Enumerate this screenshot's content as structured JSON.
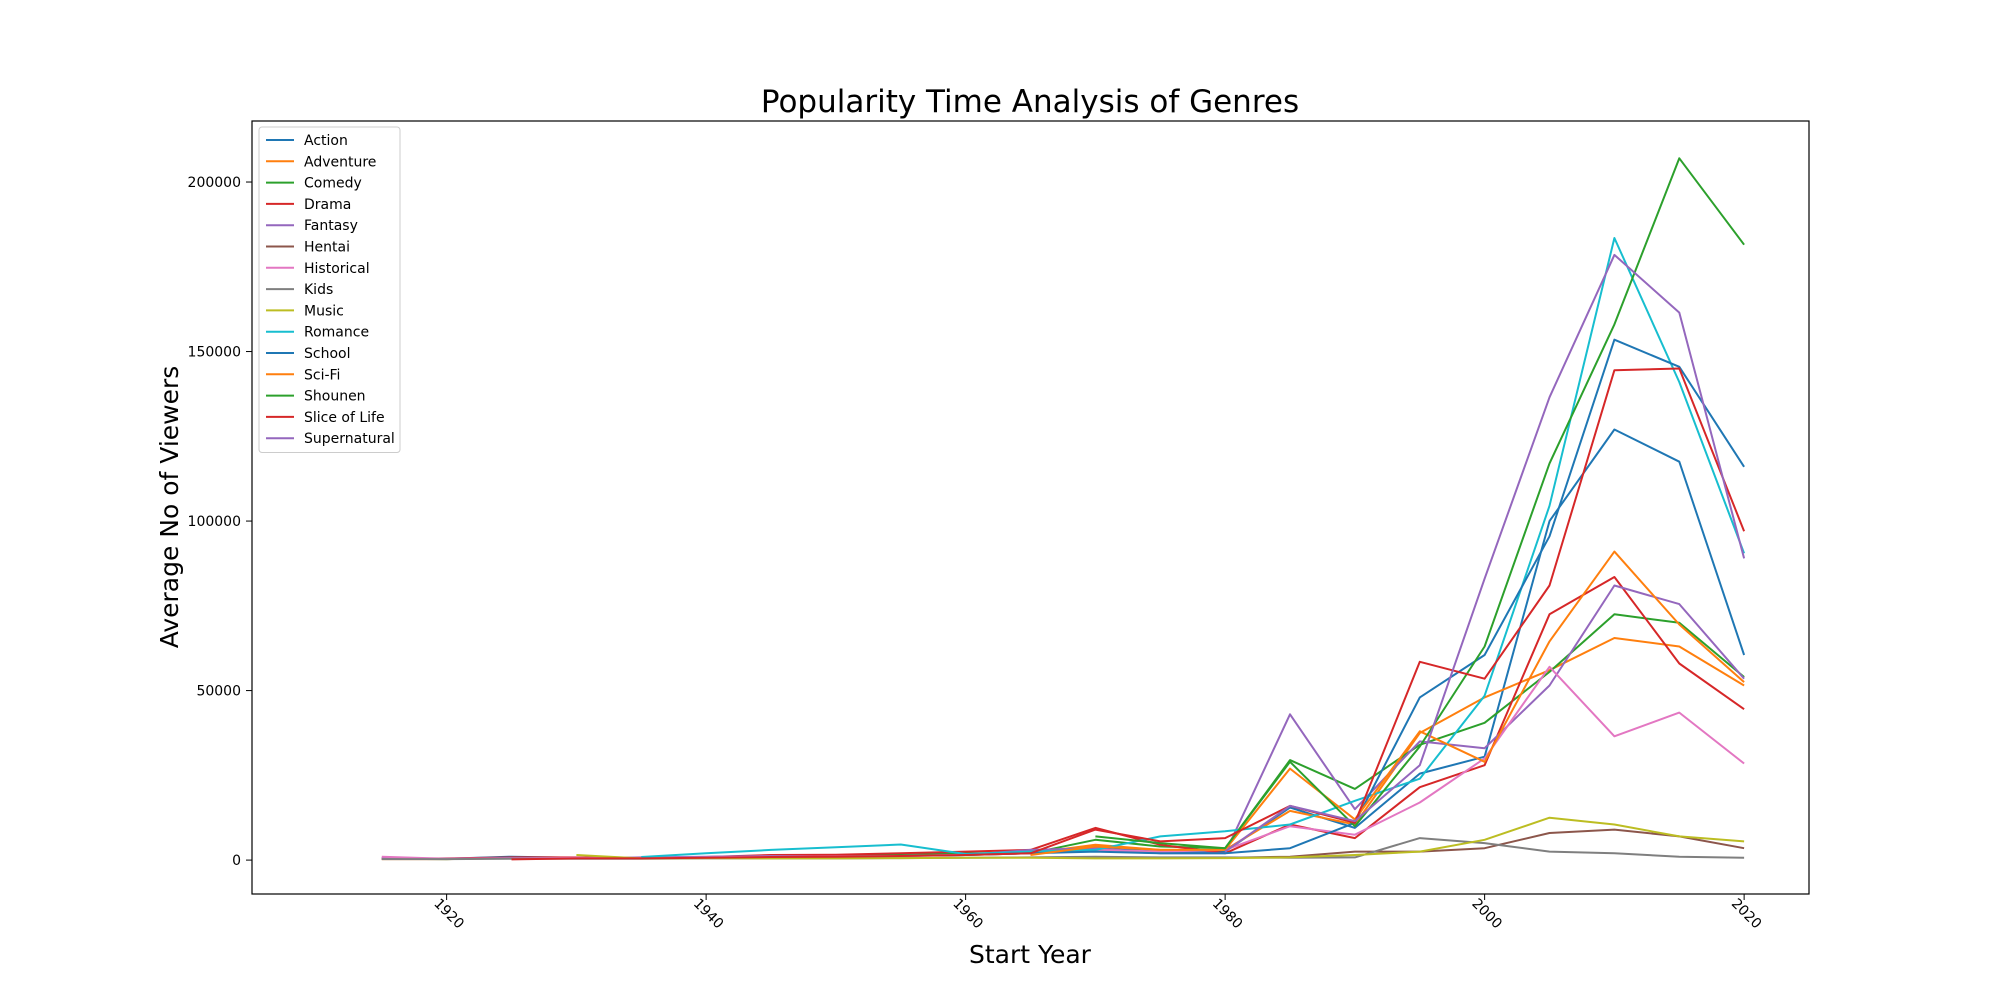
{
  "chart_data": {
    "type": "line",
    "title": "Popularity Time Analysis of Genres",
    "xlabel": "Start Year",
    "ylabel": "Average No of Viewers",
    "xlim": [
      1905,
      2025
    ],
    "ylim": [
      -10000,
      218000
    ],
    "xticks": [
      1920,
      1940,
      1960,
      1980,
      2000,
      2020
    ],
    "yticks": [
      0,
      50000,
      100000,
      150000,
      200000
    ],
    "grid": false,
    "legend_position": "upper-left",
    "x": [
      1915,
      1920,
      1925,
      1930,
      1935,
      1940,
      1945,
      1950,
      1955,
      1960,
      1965,
      1970,
      1975,
      1980,
      1985,
      1990,
      1995,
      2000,
      2005,
      2010,
      2015,
      2020
    ],
    "series": [
      {
        "name": "Action",
        "color": "#1f77b4",
        "values": [
          500,
          400,
          1000,
          700,
          600,
          800,
          1200,
          900,
          1300,
          1500,
          2500,
          3500,
          2500,
          2500,
          15500,
          9500,
          25500,
          30500,
          100000,
          127000,
          117500,
          60500
        ]
      },
      {
        "name": "Adventure",
        "color": "#ff7f0e",
        "values": [
          300,
          300,
          600,
          700,
          500,
          900,
          1000,
          1200,
          1400,
          1500,
          2000,
          4500,
          3000,
          3000,
          14500,
          10500,
          37500,
          48000,
          56000,
          65500,
          63000,
          51500
        ]
      },
      {
        "name": "Comedy",
        "color": "#2ca02c",
        "values": [
          400,
          300,
          700,
          700,
          500,
          700,
          1000,
          1200,
          1500,
          2000,
          2000,
          6000,
          4000,
          3500,
          29500,
          21000,
          34000,
          40500,
          55500,
          72500,
          70000,
          54000
        ]
      },
      {
        "name": "Drama",
        "color": "#d62728",
        "values": [
          400,
          500,
          800,
          800,
          600,
          900,
          1500,
          1600,
          2000,
          2500,
          3000,
          9500,
          4500,
          2000,
          10500,
          6500,
          21500,
          28000,
          72500,
          83500,
          58000,
          44500
        ]
      },
      {
        "name": "Fantasy",
        "color": "#9467bd",
        "values": [
          700,
          400,
          600,
          500,
          800,
          1000,
          1200,
          1000,
          1200,
          1500,
          3000,
          3500,
          2000,
          2000,
          43000,
          15000,
          35000,
          33000,
          51500,
          81000,
          75500,
          53500
        ]
      },
      {
        "name": "Hentai",
        "color": "#8c564b",
        "values": [
          null,
          null,
          null,
          null,
          null,
          null,
          null,
          null,
          null,
          null,
          null,
          null,
          null,
          700,
          1000,
          2500,
          2500,
          3500,
          8000,
          9000,
          7000,
          3500
        ]
      },
      {
        "name": "Historical",
        "color": "#e377c2",
        "values": [
          1000,
          400,
          500,
          700,
          600,
          800,
          1000,
          1100,
          1200,
          1600,
          2000,
          3000,
          2500,
          3000,
          10000,
          7500,
          17000,
          30000,
          57000,
          36500,
          43500,
          28500
        ]
      },
      {
        "name": "Kids",
        "color": "#7f7f7f",
        "values": [
          300,
          300,
          400,
          400,
          400,
          500,
          500,
          500,
          600,
          700,
          800,
          1000,
          800,
          800,
          700,
          800,
          6500,
          5000,
          2500,
          2000,
          1000,
          700
        ]
      },
      {
        "name": "Music",
        "color": "#bcbd22",
        "values": [
          null,
          null,
          null,
          1500,
          500,
          600,
          500,
          500,
          600,
          700,
          700,
          500,
          500,
          600,
          800,
          1500,
          2500,
          6000,
          12500,
          10500,
          7000,
          5500
        ]
      },
      {
        "name": "Romance",
        "color": "#17becf",
        "values": [
          null,
          null,
          null,
          null,
          900,
          2000,
          3000,
          3800,
          4600,
          1800,
          2500,
          3000,
          7000,
          8500,
          10500,
          17500,
          24000,
          48500,
          104500,
          183500,
          141000,
          90500
        ]
      },
      {
        "name": "School",
        "color": "#1f77b4",
        "values": [
          null,
          null,
          null,
          null,
          null,
          null,
          null,
          null,
          null,
          1500,
          2000,
          2500,
          2000,
          2000,
          3500,
          11000,
          48000,
          60500,
          95500,
          153500,
          145500,
          116000
        ]
      },
      {
        "name": "Sci-Fi",
        "color": "#ff7f0e",
        "values": [
          null,
          null,
          null,
          null,
          null,
          null,
          null,
          null,
          null,
          null,
          1500,
          4000,
          3000,
          3000,
          27000,
          12000,
          38000,
          29000,
          64500,
          91000,
          69500,
          52500
        ]
      },
      {
        "name": "Shounen",
        "color": "#2ca02c",
        "values": [
          null,
          null,
          null,
          null,
          null,
          null,
          null,
          null,
          null,
          null,
          null,
          7000,
          5000,
          3500,
          29000,
          10000,
          33500,
          63000,
          117000,
          158000,
          207000,
          181500
        ]
      },
      {
        "name": "Slice of Life",
        "color": "#d62728",
        "values": [
          null,
          null,
          200,
          500,
          500,
          700,
          900,
          1000,
          1200,
          1500,
          2000,
          9000,
          5500,
          6500,
          16000,
          11000,
          58500,
          53500,
          81000,
          144500,
          145000,
          97000
        ]
      },
      {
        "name": "Supernatural",
        "color": "#9467bd",
        "values": [
          null,
          null,
          null,
          null,
          null,
          null,
          null,
          null,
          null,
          null,
          null,
          null,
          null,
          2500,
          16000,
          11500,
          28000,
          83000,
          136500,
          178500,
          161500,
          89000
        ]
      }
    ]
  }
}
